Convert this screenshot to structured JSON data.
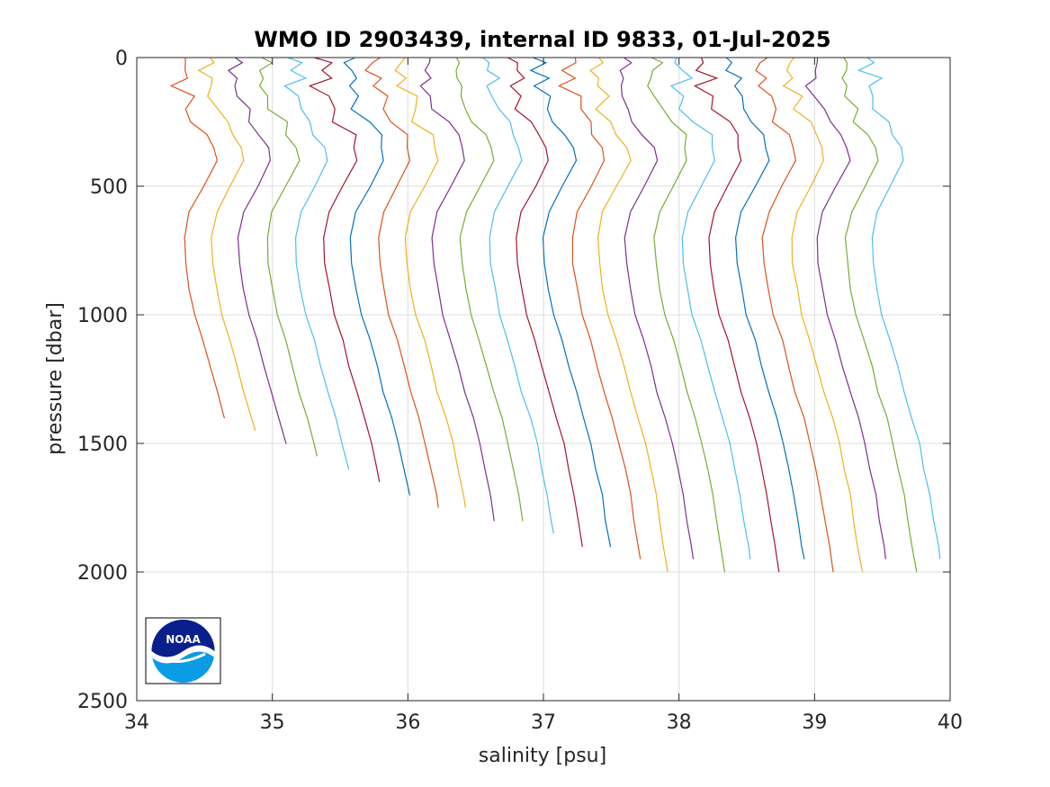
{
  "chart_data": {
    "type": "line",
    "title": "WMO ID 2903439, internal ID 9833, 01-Jul-2025",
    "xlabel": "salinity [psu]",
    "ylabel": "pressure [dbar]",
    "xlim": [
      34,
      40
    ],
    "ylim": [
      0,
      2500
    ],
    "y_reversed": true,
    "grid": true,
    "xticks": [
      "34",
      "35",
      "36",
      "37",
      "38",
      "39",
      "40"
    ],
    "yticks": [
      "0",
      "500",
      "1000",
      "1500",
      "2000",
      "2500"
    ],
    "profile_shape": {
      "pressure": [
        0,
        20,
        50,
        80,
        110,
        150,
        200,
        250,
        300,
        350,
        400,
        500,
        600,
        700,
        800,
        900,
        1000,
        1100,
        1200,
        1300,
        1400,
        1500,
        1600,
        1700,
        1800,
        1900,
        2000
      ],
      "salinity_offset": [
        -0.02,
        0.0,
        -0.04,
        0.02,
        -0.05,
        0.03,
        0.04,
        0.1,
        0.18,
        0.22,
        0.24,
        0.14,
        0.04,
        0.0,
        0.01,
        0.04,
        0.08,
        0.14,
        0.19,
        0.24,
        0.3,
        0.35,
        0.39,
        0.43,
        0.46,
        0.49,
        0.52
      ]
    },
    "series": [
      {
        "color": "#D95319",
        "surface_salinity": 34.35,
        "max_pressure": 1400
      },
      {
        "color": "#EDB120",
        "surface_salinity": 34.55,
        "max_pressure": 1450
      },
      {
        "color": "#7E2F8E",
        "surface_salinity": 34.75,
        "max_pressure": 1500
      },
      {
        "color": "#77AC30",
        "surface_salinity": 34.96,
        "max_pressure": 1550
      },
      {
        "color": "#4DBEEE",
        "surface_salinity": 35.17,
        "max_pressure": 1600
      },
      {
        "color": "#A2142F",
        "surface_salinity": 35.38,
        "max_pressure": 1650
      },
      {
        "color": "#0072BD",
        "surface_salinity": 35.58,
        "max_pressure": 1700
      },
      {
        "color": "#D95319",
        "surface_salinity": 35.78,
        "max_pressure": 1750
      },
      {
        "color": "#EDB120",
        "surface_salinity": 35.98,
        "max_pressure": 1750
      },
      {
        "color": "#7E2F8E",
        "surface_salinity": 36.18,
        "max_pressure": 1800
      },
      {
        "color": "#77AC30",
        "surface_salinity": 36.39,
        "max_pressure": 1800
      },
      {
        "color": "#4DBEEE",
        "surface_salinity": 36.6,
        "max_pressure": 1850
      },
      {
        "color": "#A2142F",
        "surface_salinity": 36.8,
        "max_pressure": 1900
      },
      {
        "color": "#0072BD",
        "surface_salinity": 37.0,
        "max_pressure": 1900
      },
      {
        "color": "#D95319",
        "surface_salinity": 37.21,
        "max_pressure": 1950
      },
      {
        "color": "#EDB120",
        "surface_salinity": 37.4,
        "max_pressure": 2000
      },
      {
        "color": "#7E2F8E",
        "surface_salinity": 37.6,
        "max_pressure": 1950
      },
      {
        "color": "#77AC30",
        "surface_salinity": 37.82,
        "max_pressure": 2000
      },
      {
        "color": "#4DBEEE",
        "surface_salinity": 38.02,
        "max_pressure": 1950
      },
      {
        "color": "#A2142F",
        "surface_salinity": 38.22,
        "max_pressure": 2000
      },
      {
        "color": "#0072BD",
        "surface_salinity": 38.42,
        "max_pressure": 1950
      },
      {
        "color": "#D95319",
        "surface_salinity": 38.62,
        "max_pressure": 2000
      },
      {
        "color": "#EDB120",
        "surface_salinity": 38.83,
        "max_pressure": 2000
      },
      {
        "color": "#7E2F8E",
        "surface_salinity": 39.02,
        "max_pressure": 1950
      },
      {
        "color": "#77AC30",
        "surface_salinity": 39.23,
        "max_pressure": 2000
      },
      {
        "color": "#4DBEEE",
        "surface_salinity": 39.42,
        "max_pressure": 1950
      }
    ]
  },
  "logo": {
    "text": "NOAA",
    "colors": {
      "navy": "#0A1E8C",
      "blue": "#0A9BE6",
      "white": "#ffffff"
    }
  }
}
